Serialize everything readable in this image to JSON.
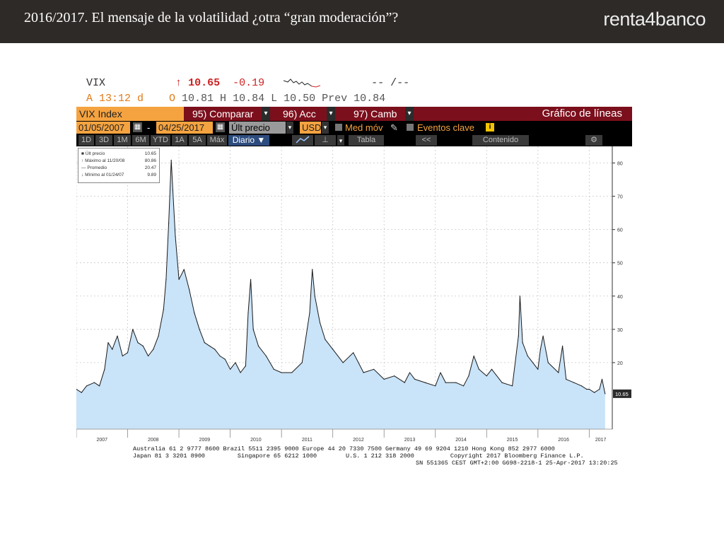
{
  "slide": {
    "title": "2016/2017.  El mensaje de la volatilidad ¿otra “gran moderación”?",
    "brand": "renta4banco"
  },
  "quote": {
    "ticker": "VIX",
    "arrow": "↑",
    "last": "10.65",
    "change": "-0.19",
    "trailing": "-- /--",
    "line2_prefix": "A 13:12 d    O ",
    "open": "10.81",
    "h_label": " H ",
    "high": "10.84",
    "l_label": " L ",
    "low": "10.50",
    "prev_label": " Prev ",
    "prev": "10.84"
  },
  "menubar": {
    "ticker": "VIX Index",
    "compare": "95) Comparar",
    "actions": "96) Acc",
    "change": "97) Camb",
    "chart_type": "Gráfico de líneas"
  },
  "datebar": {
    "start": "01/05/2007",
    "dash": "-",
    "end": "04/25/2017",
    "field": "Últ precio",
    "currency": "USD",
    "moving_avg": "Med móv",
    "key_events": "Eventos clave",
    "info_icon": "i"
  },
  "toolbar": {
    "periods": [
      "1D",
      "3D",
      "1M",
      "6M",
      "YTD",
      "1A",
      "5A",
      "Máx"
    ],
    "frequency": "Diario ▼",
    "table": "Tabla",
    "collapse": "<<",
    "content": "Contenido"
  },
  "legend": {
    "rows": [
      {
        "label": "Últ precio",
        "value": "10.65"
      },
      {
        "label": "Máximo al 11/20/08",
        "value": "80.86"
      },
      {
        "label": "Promedio",
        "value": "20.47"
      },
      {
        "label": "Mínimo al 01/24/07",
        "value": "9.89"
      }
    ]
  },
  "last_tag": "10.65",
  "footer": {
    "line1": "Australia 61 2 9777 8600 Brazil 5511 2395 9000 Europe 44 20 7330 7500 Germany 49 69 9204 1210 Hong Kong 852 2977 6000",
    "line2": "Japan 81 3 3201 8900         Singapore 65 6212 1000        U.S. 1 212 318 2000          Copyright 2017 Bloomberg Finance L.P.",
    "line3": "SN 551365 CEST GMT+2:00 G698-2218-1 25-Apr-2017 13:20:25"
  },
  "colors": {
    "accent_orange": "#f5a340",
    "menubar_red": "#7c0f1c",
    "area_fill": "#c9e3f8",
    "line": "#1a1a1a",
    "last_red": "#cc2222"
  },
  "chart_data": {
    "type": "area",
    "title": "",
    "xlabel": "",
    "ylabel": "",
    "ylim": [
      0,
      85
    ],
    "yticks": [
      20,
      30,
      40,
      50,
      60,
      70,
      80
    ],
    "xticks": [
      "2007",
      "2008",
      "2009",
      "2010",
      "2011",
      "2012",
      "2013",
      "2014",
      "2015",
      "2016",
      "2017"
    ],
    "grid": true,
    "legend_position": "top-left",
    "series": [
      {
        "name": "Últ precio",
        "x": [
          2007.0,
          2007.1,
          2007.2,
          2007.35,
          2007.45,
          2007.55,
          2007.62,
          2007.7,
          2007.8,
          2007.9,
          2008.0,
          2008.1,
          2008.2,
          2008.3,
          2008.4,
          2008.5,
          2008.6,
          2008.7,
          2008.75,
          2008.8,
          2008.85,
          2008.88,
          2008.93,
          2009.0,
          2009.1,
          2009.2,
          2009.3,
          2009.4,
          2009.5,
          2009.6,
          2009.7,
          2009.8,
          2009.9,
          2010.0,
          2010.1,
          2010.2,
          2010.3,
          2010.35,
          2010.4,
          2010.45,
          2010.55,
          2010.7,
          2010.85,
          2011.0,
          2011.2,
          2011.4,
          2011.55,
          2011.6,
          2011.65,
          2011.75,
          2011.85,
          2012.0,
          2012.2,
          2012.4,
          2012.6,
          2012.8,
          2013.0,
          2013.2,
          2013.4,
          2013.5,
          2013.6,
          2013.8,
          2014.0,
          2014.1,
          2014.2,
          2014.4,
          2014.55,
          2014.65,
          2014.75,
          2014.85,
          2015.0,
          2015.1,
          2015.3,
          2015.5,
          2015.62,
          2015.65,
          2015.7,
          2015.8,
          2015.9,
          2016.0,
          2016.05,
          2016.1,
          2016.2,
          2016.4,
          2016.48,
          2016.55,
          2016.7,
          2016.85,
          2016.95,
          2017.0,
          2017.1,
          2017.2,
          2017.25,
          2017.31
        ],
        "y": [
          12,
          11,
          13,
          14,
          13,
          18,
          26,
          24,
          28,
          22,
          23,
          30,
          26,
          25,
          22,
          24,
          28,
          36,
          45,
          62,
          80.86,
          72,
          58,
          45,
          48,
          42,
          35,
          30,
          26,
          25,
          24,
          22,
          21,
          18,
          20,
          17,
          19,
          35,
          45,
          30,
          25,
          22,
          18,
          17,
          17,
          20,
          35,
          48,
          40,
          32,
          27,
          24,
          20,
          23,
          17,
          18,
          15,
          16,
          14,
          17,
          15,
          14,
          13,
          17,
          14,
          14,
          13,
          16,
          22,
          18,
          16,
          18,
          14,
          13,
          28,
          40,
          26,
          22,
          20,
          18,
          24,
          28,
          20,
          17,
          25,
          15,
          14,
          13,
          12,
          12,
          11,
          12,
          15,
          10.65
        ]
      }
    ]
  }
}
